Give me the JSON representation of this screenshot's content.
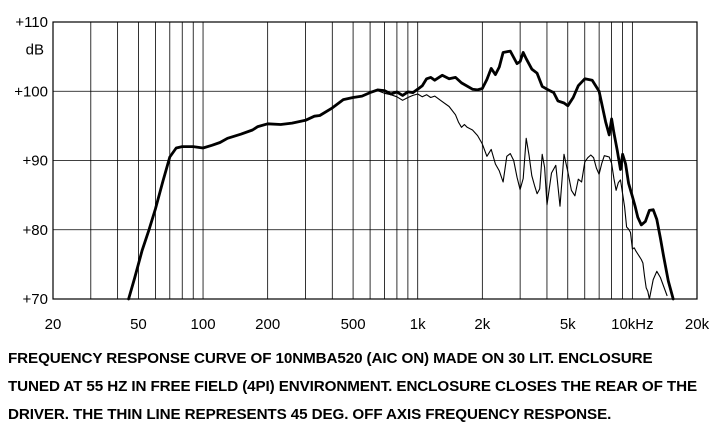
{
  "chart_data": {
    "type": "line",
    "xscale": "log",
    "xlim": [
      20,
      20000
    ],
    "ylim": [
      70,
      110
    ],
    "grid": true,
    "y_unit_label": "dB",
    "y_ticks": [
      {
        "value": 110,
        "label": "+110"
      },
      {
        "value": 100,
        "label": "+100"
      },
      {
        "value": 90,
        "label": "+90"
      },
      {
        "value": 80,
        "label": "+80"
      },
      {
        "value": 70,
        "label": "+70"
      }
    ],
    "x_ticks": [
      {
        "value": 20,
        "label": "20"
      },
      {
        "value": 50,
        "label": "50"
      },
      {
        "value": 100,
        "label": "100"
      },
      {
        "value": 200,
        "label": "200"
      },
      {
        "value": 500,
        "label": "500"
      },
      {
        "value": 1000,
        "label": "1k"
      },
      {
        "value": 2000,
        "label": "2k"
      },
      {
        "value": 5000,
        "label": "5k"
      },
      {
        "value": 10000,
        "label": "10kHz"
      },
      {
        "value": 20000,
        "label": "20k"
      }
    ],
    "series": [
      {
        "style": "thick",
        "x": [
          45,
          48,
          52,
          56,
          60,
          65,
          70,
          75,
          80,
          90,
          100,
          110,
          120,
          130,
          150,
          170,
          180,
          200,
          230,
          260,
          300,
          330,
          350,
          400,
          450,
          500,
          550,
          600,
          650,
          700,
          750,
          800,
          850,
          900,
          950,
          1000,
          1050,
          1100,
          1150,
          1200,
          1300,
          1400,
          1500,
          1600,
          1800,
          1900,
          2000,
          2100,
          2200,
          2300,
          2400,
          2500,
          2700,
          2900,
          3000,
          3100,
          3200,
          3400,
          3600,
          3800,
          4000,
          4300,
          4500,
          4800,
          5000,
          5300,
          5600,
          6000,
          6500,
          7000,
          7500,
          7800,
          8000,
          8200,
          8500,
          8800,
          9000,
          9300,
          9600,
          10000,
          10300,
          10600,
          11000,
          11500,
          12000,
          12500,
          13000,
          13500,
          14000,
          14700,
          15500
        ],
        "y": [
          70,
          73,
          77,
          80,
          83,
          87,
          90.5,
          91.8,
          92,
          92,
          91.8,
          92.2,
          92.6,
          93.2,
          93.8,
          94.4,
          94.9,
          95.3,
          95.2,
          95.4,
          95.8,
          96.4,
          96.5,
          97.6,
          98.8,
          99.1,
          99.3,
          99.8,
          100.2,
          100.1,
          99.6,
          99.9,
          99.4,
          99.9,
          99.8,
          100.3,
          100.8,
          101.8,
          102,
          101.6,
          102.3,
          101.8,
          102,
          101.2,
          100.3,
          100.2,
          100.4,
          101.7,
          103.3,
          102.4,
          103.5,
          105.6,
          105.8,
          104,
          104.3,
          105.6,
          104.7,
          103.2,
          102.6,
          100.7,
          100.3,
          99.8,
          98.6,
          98.3,
          97.9,
          99.1,
          100.8,
          101.8,
          101.6,
          100,
          95.6,
          93.7,
          96,
          94,
          91.5,
          88.7,
          90.9,
          89.5,
          86.7,
          84.8,
          83.4,
          81.8,
          80.7,
          81.2,
          82.8,
          82.9,
          81.5,
          78.8,
          76.1,
          72.6,
          70
        ]
      },
      {
        "style": "thin",
        "x": [
          650,
          700,
          750,
          800,
          850,
          900,
          950,
          1000,
          1050,
          1100,
          1150,
          1200,
          1300,
          1400,
          1500,
          1550,
          1600,
          1650,
          1700,
          1800,
          1900,
          2000,
          2100,
          2200,
          2300,
          2400,
          2500,
          2600,
          2700,
          2800,
          2900,
          3000,
          3100,
          3200,
          3300,
          3400,
          3500,
          3600,
          3700,
          3800,
          3900,
          4000,
          4200,
          4400,
          4600,
          4800,
          5000,
          5200,
          5400,
          5600,
          5800,
          6000,
          6200,
          6400,
          6600,
          6800,
          7000,
          7200,
          7400,
          7600,
          7800,
          8000,
          8200,
          8400,
          8600,
          8800,
          9000,
          9200,
          9400,
          9600,
          9800,
          10000,
          10200,
          10400,
          10600,
          10800,
          11000,
          11200,
          11400,
          11600,
          11800,
          12000,
          12500,
          13000,
          13500,
          14000,
          14500
        ],
        "y": [
          100.1,
          99.7,
          99.5,
          99.2,
          98.7,
          99.1,
          99.4,
          99.6,
          99.2,
          99.5,
          99.1,
          99.3,
          98.5,
          97.8,
          96.6,
          95.5,
          94.8,
          95.2,
          94.8,
          94.4,
          93.6,
          92.4,
          90.6,
          91.6,
          89.5,
          88.5,
          86.9,
          90.6,
          91,
          90,
          87.6,
          85.8,
          87.4,
          93.2,
          90.8,
          87.8,
          86.4,
          85.2,
          85.9,
          90.9,
          89,
          83.6,
          88.2,
          89.3,
          83.4,
          90.9,
          88.4,
          85.7,
          84.9,
          87.3,
          86.9,
          89.8,
          90.4,
          90.8,
          90.4,
          88.9,
          88,
          89.6,
          90.7,
          90.6,
          90.5,
          89.6,
          87.4,
          85.7,
          86.8,
          87.2,
          85.2,
          83.3,
          80.4,
          80.1,
          79.6,
          77.2,
          77.4,
          76.9,
          76.5,
          76.1,
          75.7,
          75.2,
          73.2,
          71.6,
          71.1,
          70,
          72.8,
          74,
          73.1,
          71.8,
          70.5
        ]
      }
    ]
  },
  "caption": {
    "line1": "FREQUENCY RESPONSE CURVE OF 10NMBA520 (AIC ON) MADE ON 30 LIT. ENCLOSURE",
    "line2": "TUNED AT 55 HZ IN FREE FIELD (4PI) ENVIRONMENT. ENCLOSURE CLOSES THE REAR OF THE",
    "line3": "DRIVER. THE THIN LINE REPRESENTS 45 DEG. OFF AXIS FREQUENCY RESPONSE."
  }
}
